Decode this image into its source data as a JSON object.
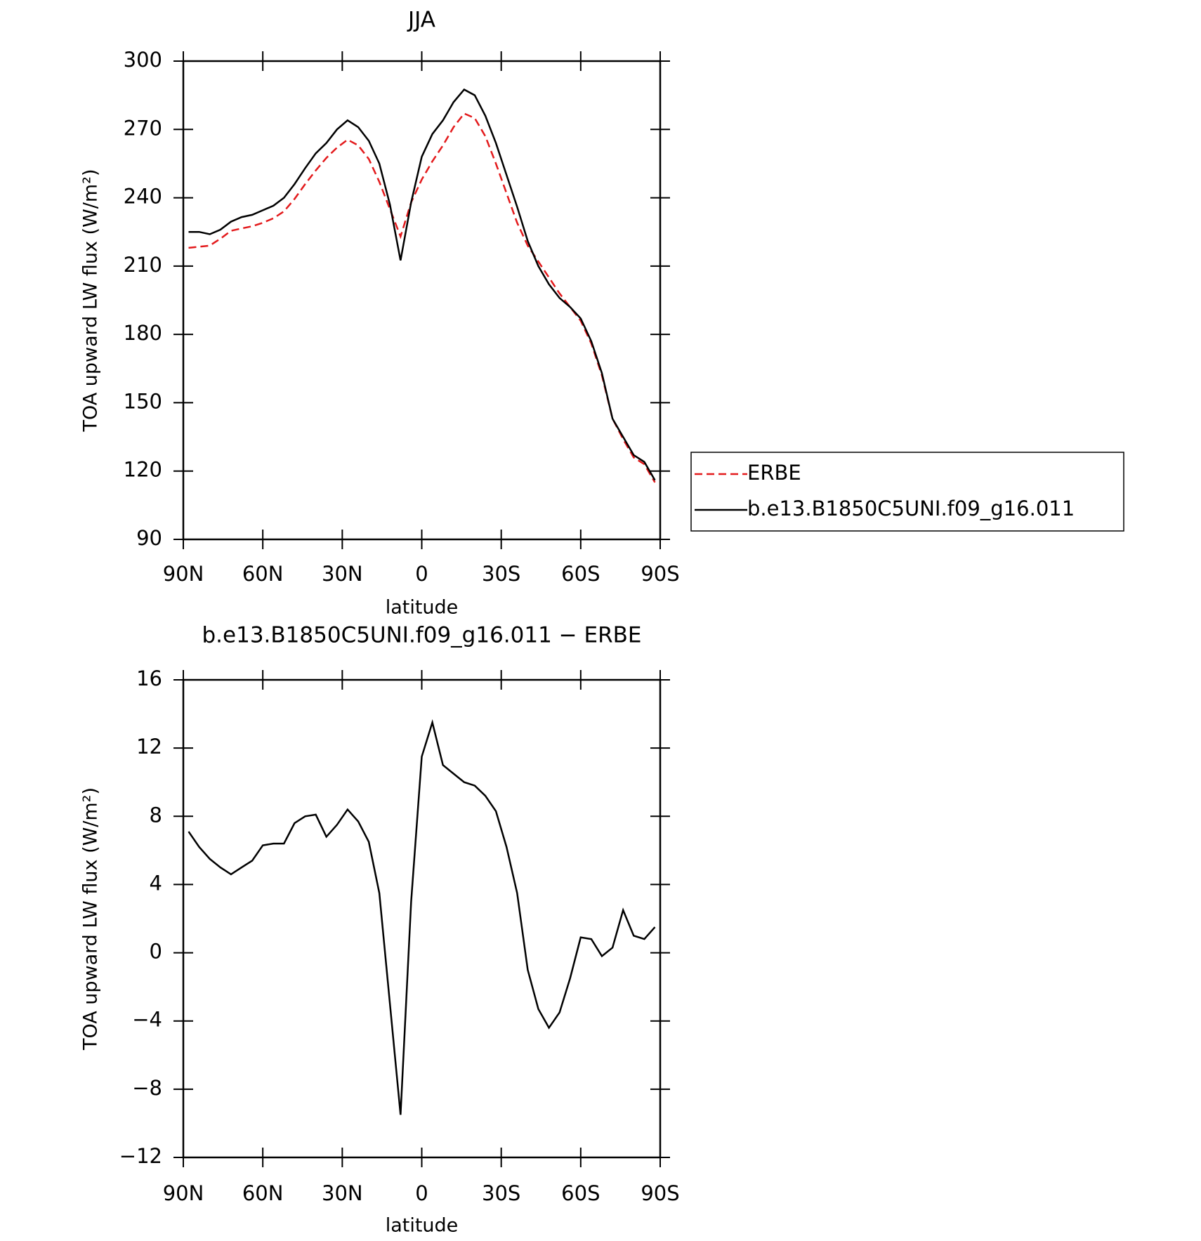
{
  "chart_data": [
    {
      "type": "line",
      "title": "JJA",
      "xlabel": "latitude",
      "ylabel": "TOA upward LW flux (W/m²)",
      "x": [
        88,
        84,
        80,
        76,
        72,
        68,
        64,
        60,
        56,
        52,
        48,
        44,
        40,
        36,
        32,
        28,
        24,
        20,
        16,
        12,
        8,
        4,
        0,
        -4,
        -8,
        -12,
        -16,
        -20,
        -24,
        -28,
        -32,
        -36,
        -40,
        -44,
        -48,
        -52,
        -56,
        -60,
        -64,
        -68,
        -72,
        -76,
        -80,
        -84,
        -88
      ],
      "series": [
        {
          "name": "ERBE",
          "color": "#e31a1c",
          "line_style": "dashed",
          "values": [
            218,
            218.5,
            219,
            222,
            225.5,
            226.5,
            227.5,
            229,
            231,
            234,
            239.5,
            246,
            252,
            257.5,
            262,
            265.5,
            263,
            257,
            247,
            235,
            223,
            238,
            248,
            256,
            263,
            271,
            277,
            275,
            267,
            255,
            242,
            229,
            219,
            212,
            205,
            198,
            192,
            186,
            176,
            162,
            143,
            134,
            126,
            123,
            115
          ]
        },
        {
          "name": "b.e13.B1850C5UNI.f09_g16.011",
          "color": "#000000",
          "line_style": "solid",
          "values": [
            225,
            225,
            224,
            226,
            229.5,
            231.5,
            232.5,
            234.5,
            236.5,
            240,
            246,
            253,
            259.5,
            264,
            270,
            274,
            271,
            265,
            255,
            237,
            212.5,
            238,
            258,
            268,
            274,
            282,
            287.5,
            285,
            276,
            264,
            250,
            236,
            221,
            210,
            202,
            196,
            192,
            187,
            177,
            163,
            143,
            135,
            127,
            124,
            116
          ]
        }
      ],
      "xlim": [
        90,
        -90
      ],
      "xticks": [
        {
          "value": 90,
          "label": "90N"
        },
        {
          "value": 60,
          "label": "60N"
        },
        {
          "value": 30,
          "label": "30N"
        },
        0,
        {
          "value": -30,
          "label": "30S"
        },
        {
          "value": -60,
          "label": "60S"
        },
        {
          "value": -90,
          "label": "90S"
        }
      ],
      "ylim": [
        90,
        300
      ],
      "yticks": [
        90,
        120,
        150,
        180,
        210,
        240,
        270,
        300
      ],
      "legend": "outside right"
    },
    {
      "type": "line",
      "title": "b.e13.B1850C5UNI.f09_g16.011 − ERBE",
      "xlabel": "latitude",
      "ylabel": "TOA upward LW flux (W/m²)",
      "x": [
        88,
        84,
        80,
        76,
        72,
        68,
        64,
        60,
        56,
        52,
        48,
        44,
        40,
        36,
        32,
        28,
        24,
        20,
        16,
        12,
        8,
        4,
        0,
        -4,
        -8,
        -12,
        -16,
        -20,
        -24,
        -28,
        -32,
        -36,
        -40,
        -44,
        -48,
        -52,
        -56,
        -60,
        -64,
        -68,
        -72,
        -76,
        -80,
        -84,
        -88
      ],
      "series": [
        {
          "color": "#000000",
          "line_style": "solid",
          "values": [
            7.1,
            6.2,
            5.5,
            5.0,
            4.6,
            5.0,
            5.4,
            6.3,
            6.4,
            6.4,
            7.6,
            8.0,
            8.1,
            6.8,
            7.5,
            8.4,
            7.7,
            6.5,
            3.5,
            -3,
            -9.5,
            3,
            11.5,
            13.5,
            11,
            10.5,
            10.0,
            9.8,
            9.2,
            8.3,
            6.2,
            3.5,
            -1.0,
            -3.3,
            -4.4,
            -3.5,
            -1.5,
            0.9,
            0.8,
            -0.2,
            0.3,
            2.5,
            1.0,
            0.8,
            1.5
          ]
        }
      ],
      "xlim": [
        90,
        -90
      ],
      "xticks": [
        {
          "value": 90,
          "label": "90N"
        },
        {
          "value": 60,
          "label": "60N"
        },
        {
          "value": 30,
          "label": "30N"
        },
        0,
        {
          "value": -30,
          "label": "30S"
        },
        {
          "value": -60,
          "label": "60S"
        },
        {
          "value": -90,
          "label": "90S"
        }
      ],
      "ylim": [
        -12,
        16
      ],
      "yticks": [
        {
          "value": -12,
          "label": "−12"
        },
        {
          "value": -8,
          "label": "−8"
        },
        {
          "value": -4,
          "label": "−4"
        },
        0,
        4,
        8,
        12,
        16
      ]
    }
  ]
}
